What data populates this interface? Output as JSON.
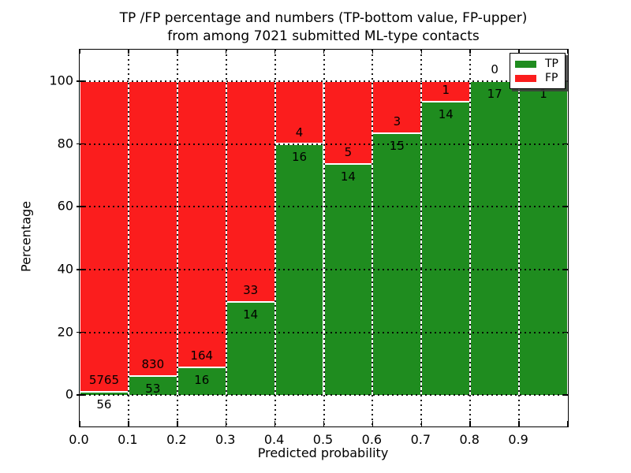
{
  "figure": {
    "title_line1": "TP /FP percentage and numbers (TP-bottom value, FP-upper)",
    "title_line2": "from among 7021 submitted ML-type contacts"
  },
  "chart_data": {
    "type": "bar",
    "stacked": true,
    "title": "TP /FP percentage and numbers (TP-bottom value, FP-upper) from among 7021 submitted ML-type contacts",
    "xlabel": "Predicted probability",
    "ylabel": "Percentage",
    "xlim": [
      0.0,
      1.0
    ],
    "ylim": [
      -10,
      110
    ],
    "grid": true,
    "grid_style": "dotted",
    "x_tick_labels": [
      "0.0",
      "0.1",
      "0.2",
      "0.3",
      "0.4",
      "0.5",
      "0.6",
      "0.7",
      "0.8",
      "0.9"
    ],
    "x_tick_values": [
      0.0,
      0.1,
      0.2,
      0.3,
      0.4,
      0.5,
      0.6,
      0.7,
      0.8,
      0.9
    ],
    "y_tick_values": [
      0,
      20,
      40,
      60,
      80,
      100
    ],
    "bin_width": 0.1,
    "categories": [
      "0.0-0.1",
      "0.1-0.2",
      "0.2-0.3",
      "0.3-0.4",
      "0.4-0.5",
      "0.5-0.6",
      "0.6-0.7",
      "0.7-0.8",
      "0.8-0.9",
      "0.9-1.0"
    ],
    "series": [
      {
        "name": "TP",
        "color": "#1f8c1f",
        "values": [
          56,
          53,
          16,
          14,
          16,
          14,
          15,
          14,
          17,
          1
        ]
      },
      {
        "name": "FP",
        "color": "#fb1d1d",
        "values": [
          5765,
          830,
          164,
          33,
          4,
          5,
          3,
          1,
          0,
          0
        ]
      }
    ],
    "total_contacts": 7021,
    "bar_edge_color": "#ffffff",
    "legend": {
      "position": "upper right",
      "entries": [
        {
          "label": "TP",
          "color": "#1f8c1f"
        },
        {
          "label": "FP",
          "color": "#fb1d1d"
        }
      ]
    }
  }
}
